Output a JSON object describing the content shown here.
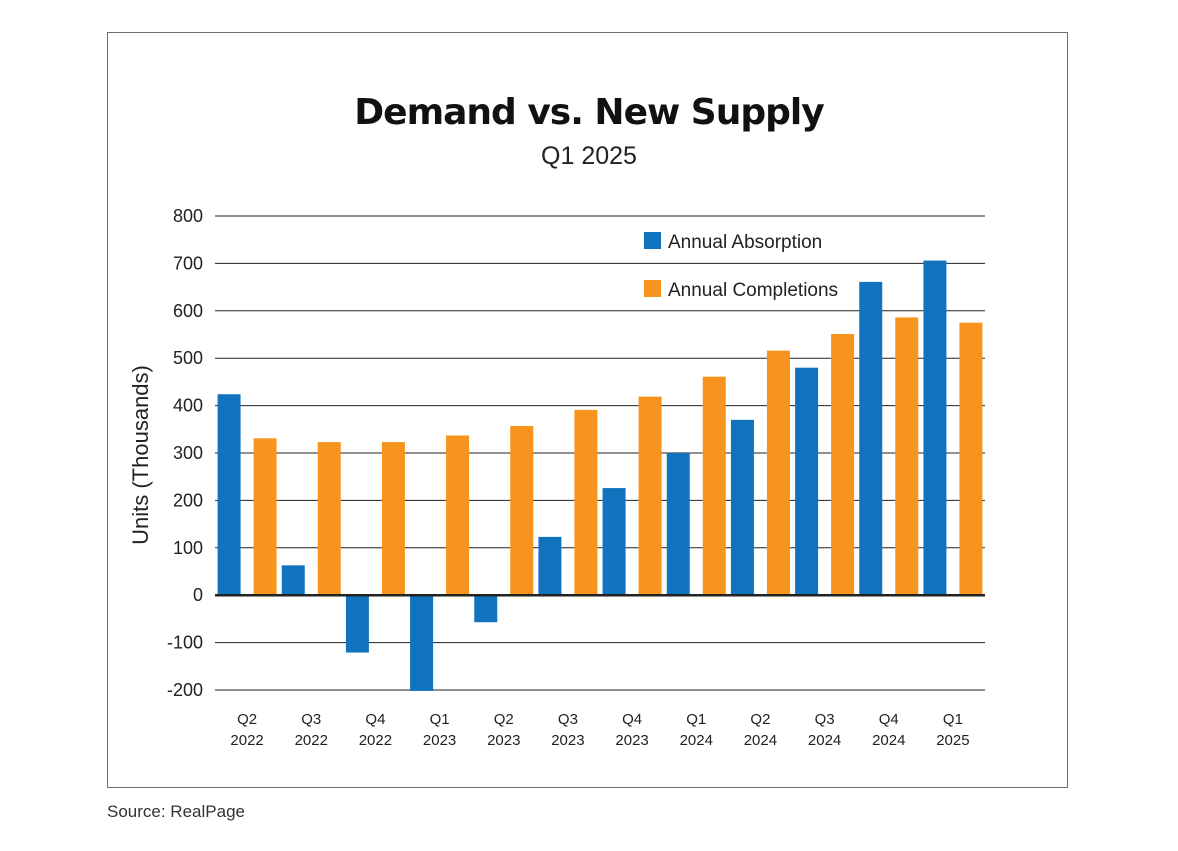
{
  "source": "Source: RealPage",
  "colors": {
    "absorption": "#1173bd",
    "completions": "#f7941d",
    "grid": "#222222"
  },
  "chart_data": {
    "type": "bar",
    "title": "Demand vs. New Supply",
    "subtitle": "Q1 2025",
    "xlabel": "",
    "ylabel": "Units (Thousands)",
    "ylim": [
      -200,
      800
    ],
    "yticks": [
      800,
      700,
      600,
      500,
      400,
      300,
      200,
      100,
      0,
      -100,
      -200
    ],
    "grid": true,
    "legend_position": "top-right",
    "categories": [
      [
        "Q2",
        "2022"
      ],
      [
        "Q3",
        "2022"
      ],
      [
        "Q4",
        "2022"
      ],
      [
        "Q1",
        "2023"
      ],
      [
        "Q2",
        "2023"
      ],
      [
        "Q3",
        "2023"
      ],
      [
        "Q4",
        "2023"
      ],
      [
        "Q1",
        "2024"
      ],
      [
        "Q2",
        "2024"
      ],
      [
        "Q3",
        "2024"
      ],
      [
        "Q4",
        "2024"
      ],
      [
        "Q1",
        "2025"
      ]
    ],
    "series": [
      {
        "name": "Annual Absorption",
        "values": [
          424,
          63,
          -121,
          -202,
          -57,
          123,
          226,
          300,
          370,
          480,
          661,
          706
        ]
      },
      {
        "name": "Annual Completions",
        "values": [
          331,
          323,
          323,
          337,
          357,
          391,
          419,
          461,
          516,
          551,
          586,
          575
        ]
      }
    ]
  }
}
